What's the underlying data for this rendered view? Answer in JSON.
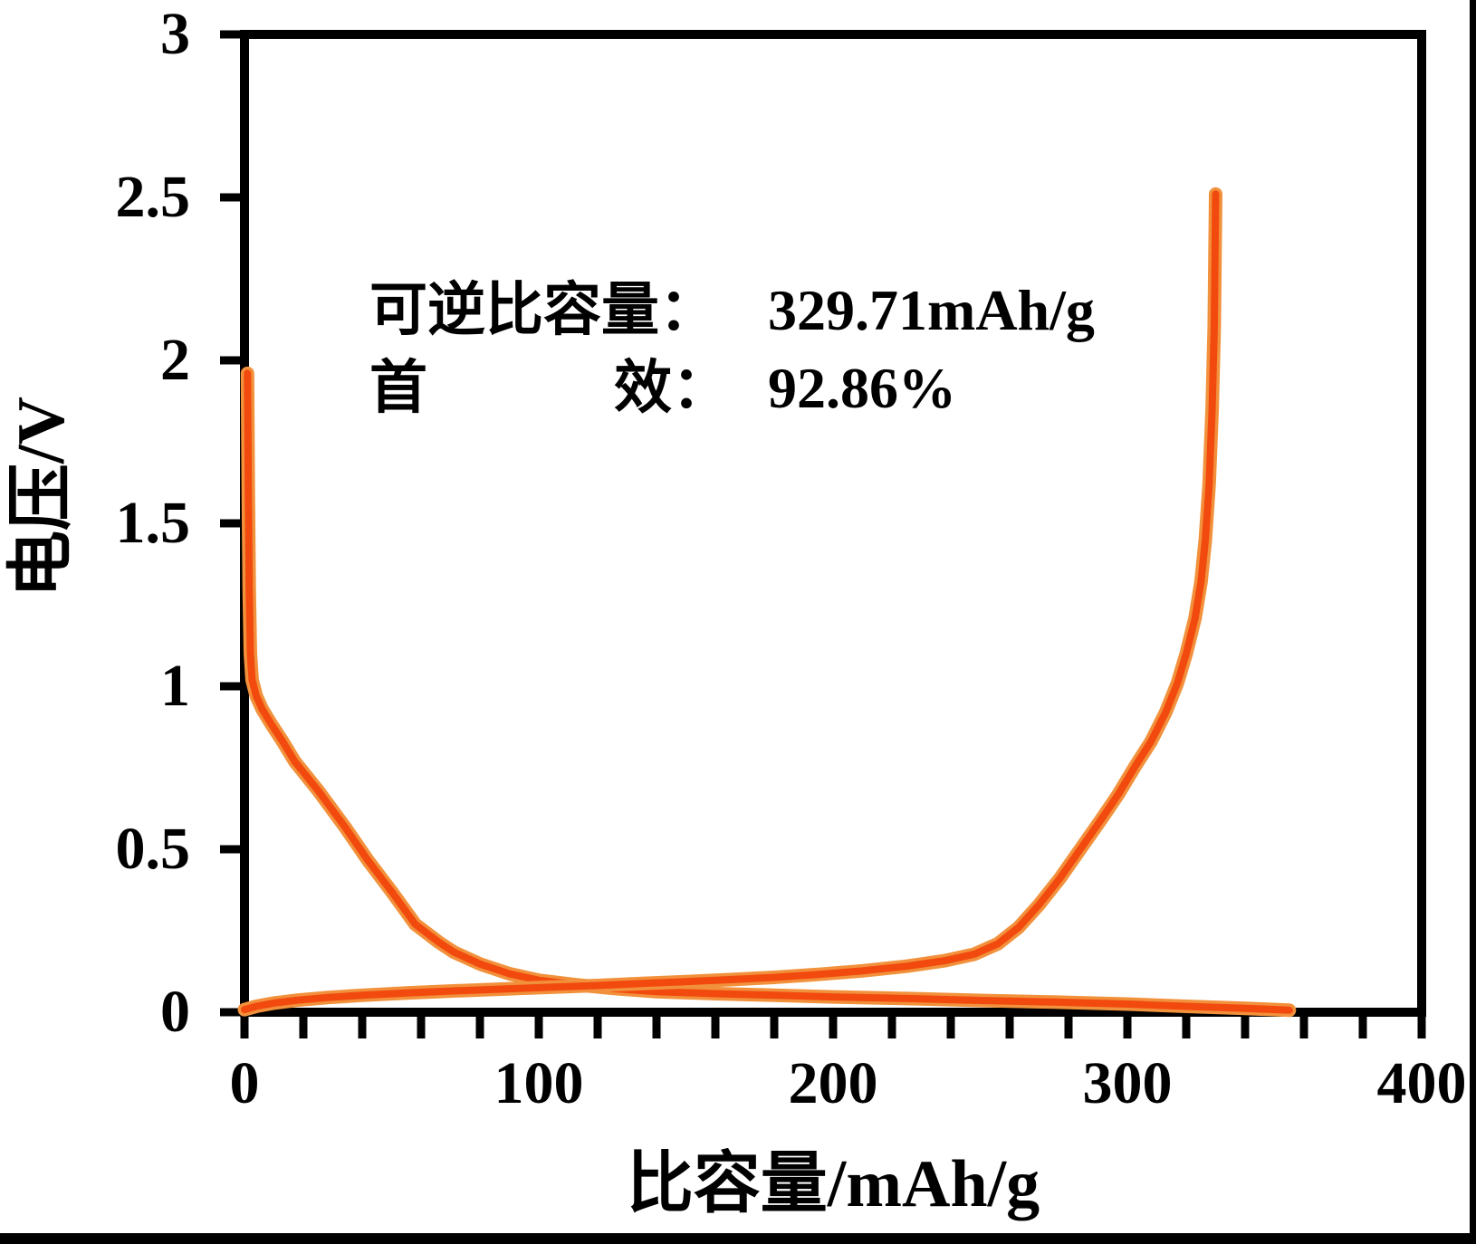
{
  "chart_data": {
    "type": "line",
    "title": "",
    "xlabel": "比容量/mAh/g",
    "ylabel": "电压/V",
    "xlim": [
      0,
      400
    ],
    "ylim": [
      0,
      3
    ],
    "x_major_ticks": [
      0,
      100,
      200,
      300,
      400
    ],
    "x_minor_tick_step": 20,
    "y_ticks": [
      0,
      0.5,
      1,
      1.5,
      2,
      2.5,
      3
    ],
    "grid": false,
    "legend": "none",
    "line_color": "#f24a0e",
    "line_halo_color": "#f2913c",
    "axis_color": "#000000",
    "series": [
      {
        "name": "first-discharge",
        "points": [
          [
            1,
            1.96
          ],
          [
            1.3,
            1.6
          ],
          [
            1.6,
            1.3
          ],
          [
            2,
            1.1
          ],
          [
            2.6,
            1.02
          ],
          [
            4,
            0.97
          ],
          [
            6,
            0.93
          ],
          [
            9,
            0.885
          ],
          [
            13,
            0.83
          ],
          [
            17,
            0.77
          ],
          [
            25,
            0.68
          ],
          [
            34,
            0.57
          ],
          [
            42,
            0.465
          ],
          [
            50,
            0.37
          ],
          [
            58,
            0.27
          ],
          [
            66,
            0.215
          ],
          [
            71,
            0.185
          ],
          [
            80,
            0.148
          ],
          [
            90,
            0.118
          ],
          [
            100,
            0.098
          ],
          [
            112,
            0.085
          ],
          [
            125,
            0.073
          ],
          [
            140,
            0.063
          ],
          [
            160,
            0.057
          ],
          [
            180,
            0.052
          ],
          [
            200,
            0.047
          ],
          [
            225,
            0.042
          ],
          [
            250,
            0.036
          ],
          [
            275,
            0.031
          ],
          [
            300,
            0.025
          ],
          [
            320,
            0.018
          ],
          [
            340,
            0.012
          ],
          [
            355,
            0.006
          ]
        ]
      },
      {
        "name": "first-charge",
        "points": [
          [
            0,
            0.008
          ],
          [
            4,
            0.018
          ],
          [
            10,
            0.028
          ],
          [
            18,
            0.037
          ],
          [
            28,
            0.045
          ],
          [
            40,
            0.052
          ],
          [
            55,
            0.059
          ],
          [
            70,
            0.065
          ],
          [
            88,
            0.071
          ],
          [
            105,
            0.077
          ],
          [
            120,
            0.082
          ],
          [
            135,
            0.088
          ],
          [
            150,
            0.094
          ],
          [
            165,
            0.1
          ],
          [
            180,
            0.107
          ],
          [
            195,
            0.116
          ],
          [
            210,
            0.127
          ],
          [
            225,
            0.141
          ],
          [
            238,
            0.158
          ],
          [
            248,
            0.178
          ],
          [
            256,
            0.21
          ],
          [
            263,
            0.26
          ],
          [
            270,
            0.33
          ],
          [
            277,
            0.41
          ],
          [
            284,
            0.5
          ],
          [
            291,
            0.59
          ],
          [
            297,
            0.67
          ],
          [
            303,
            0.76
          ],
          [
            308,
            0.83
          ],
          [
            313,
            0.92
          ],
          [
            317,
            1.01
          ],
          [
            320,
            1.1
          ],
          [
            323,
            1.21
          ],
          [
            325,
            1.32
          ],
          [
            326.5,
            1.45
          ],
          [
            327.8,
            1.62
          ],
          [
            328.8,
            1.85
          ],
          [
            329.5,
            2.1
          ],
          [
            330,
            2.51
          ]
        ]
      }
    ],
    "annotation": {
      "line1": {
        "label": "可逆比容量：",
        "value": "329.71mAh/g"
      },
      "line2": {
        "label_left": "首",
        "label_right": "效：",
        "value": "92.86%"
      }
    }
  }
}
